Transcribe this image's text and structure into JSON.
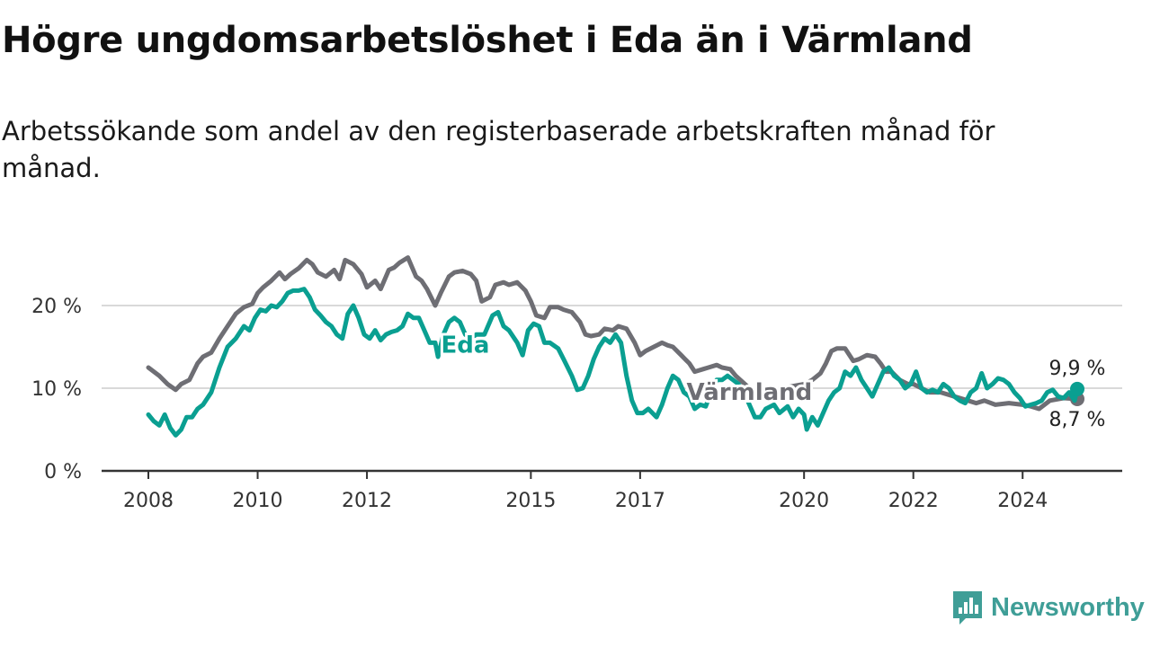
{
  "title": "Högre ungdomsarbetslöshet i Eda än i Värmland",
  "subtitle": "Arbetssökande som andel av den registerbaserade arbetskraften månad för månad.",
  "brand": {
    "name": "Newsworthy",
    "icon": "newsworthy-logo-icon",
    "color": "#3f9e97"
  },
  "chart_data": {
    "type": "line",
    "xlim": [
      2008,
      2025.5
    ],
    "ylim": [
      0,
      27
    ],
    "y_ticks": [
      {
        "value": 0,
        "label": "0 %"
      },
      {
        "value": 10,
        "label": "10 %"
      },
      {
        "value": 20,
        "label": "20 %"
      }
    ],
    "x_ticks": [
      {
        "value": 2008,
        "label": "2008"
      },
      {
        "value": 2010,
        "label": "2010"
      },
      {
        "value": 2012,
        "label": "2012"
      },
      {
        "value": 2015,
        "label": "2015"
      },
      {
        "value": 2017,
        "label": "2017"
      },
      {
        "value": 2020,
        "label": "2020"
      },
      {
        "value": 2022,
        "label": "2022"
      },
      {
        "value": 2024,
        "label": "2024"
      }
    ],
    "grid": "horizontal",
    "series": [
      {
        "name": "Värmland",
        "color": "#6e6e74",
        "end_label": "8,7 %",
        "points": [
          [
            2008.0,
            12.5
          ],
          [
            2008.2,
            11.5
          ],
          [
            2008.35,
            10.5
          ],
          [
            2008.5,
            9.8
          ],
          [
            2008.6,
            10.5
          ],
          [
            2008.75,
            11.0
          ],
          [
            2008.9,
            13.0
          ],
          [
            2009.0,
            13.8
          ],
          [
            2009.15,
            14.3
          ],
          [
            2009.3,
            16.0
          ],
          [
            2009.45,
            17.5
          ],
          [
            2009.6,
            19.0
          ],
          [
            2009.75,
            19.8
          ],
          [
            2009.9,
            20.2
          ],
          [
            2010.0,
            21.5
          ],
          [
            2010.1,
            22.2
          ],
          [
            2010.25,
            23.0
          ],
          [
            2010.4,
            24.0
          ],
          [
            2010.5,
            23.2
          ],
          [
            2010.6,
            23.8
          ],
          [
            2010.75,
            24.5
          ],
          [
            2010.9,
            25.5
          ],
          [
            2011.0,
            25.0
          ],
          [
            2011.1,
            24.0
          ],
          [
            2011.25,
            23.5
          ],
          [
            2011.4,
            24.3
          ],
          [
            2011.5,
            23.2
          ],
          [
            2011.6,
            25.5
          ],
          [
            2011.75,
            25.0
          ],
          [
            2011.9,
            23.8
          ],
          [
            2012.0,
            22.2
          ],
          [
            2012.15,
            23.0
          ],
          [
            2012.25,
            22.0
          ],
          [
            2012.4,
            24.3
          ],
          [
            2012.5,
            24.6
          ],
          [
            2012.6,
            25.2
          ],
          [
            2012.75,
            25.8
          ],
          [
            2012.9,
            23.5
          ],
          [
            2013.0,
            23.0
          ],
          [
            2013.1,
            22.0
          ],
          [
            2013.25,
            20.0
          ],
          [
            2013.35,
            21.5
          ],
          [
            2013.5,
            23.5
          ],
          [
            2013.6,
            24.0
          ],
          [
            2013.75,
            24.2
          ],
          [
            2013.9,
            23.8
          ],
          [
            2014.0,
            23.0
          ],
          [
            2014.1,
            20.5
          ],
          [
            2014.25,
            21.0
          ],
          [
            2014.35,
            22.5
          ],
          [
            2014.5,
            22.8
          ],
          [
            2014.6,
            22.5
          ],
          [
            2014.75,
            22.8
          ],
          [
            2014.9,
            21.8
          ],
          [
            2015.0,
            20.5
          ],
          [
            2015.1,
            18.8
          ],
          [
            2015.25,
            18.5
          ],
          [
            2015.35,
            19.8
          ],
          [
            2015.5,
            19.8
          ],
          [
            2015.6,
            19.5
          ],
          [
            2015.75,
            19.2
          ],
          [
            2015.9,
            18.0
          ],
          [
            2016.0,
            16.5
          ],
          [
            2016.1,
            16.3
          ],
          [
            2016.25,
            16.5
          ],
          [
            2016.35,
            17.2
          ],
          [
            2016.5,
            17.0
          ],
          [
            2016.6,
            17.5
          ],
          [
            2016.75,
            17.2
          ],
          [
            2016.9,
            15.5
          ],
          [
            2017.0,
            14.0
          ],
          [
            2017.1,
            14.5
          ],
          [
            2017.25,
            15.0
          ],
          [
            2017.4,
            15.5
          ],
          [
            2017.5,
            15.2
          ],
          [
            2017.6,
            15.0
          ],
          [
            2017.75,
            14.0
          ],
          [
            2017.9,
            13.0
          ],
          [
            2018.0,
            12.0
          ],
          [
            2018.15,
            12.3
          ],
          [
            2018.25,
            12.5
          ],
          [
            2018.4,
            12.8
          ],
          [
            2018.5,
            12.5
          ],
          [
            2018.65,
            12.3
          ],
          [
            2018.75,
            11.5
          ],
          [
            2019.0,
            10.0
          ],
          [
            2019.25,
            9.5
          ],
          [
            2019.5,
            9.8
          ],
          [
            2019.75,
            10.2
          ],
          [
            2020.0,
            10.5
          ],
          [
            2020.15,
            11.0
          ],
          [
            2020.3,
            11.8
          ],
          [
            2020.4,
            13.0
          ],
          [
            2020.5,
            14.5
          ],
          [
            2020.6,
            14.8
          ],
          [
            2020.75,
            14.8
          ],
          [
            2020.9,
            13.3
          ],
          [
            2021.0,
            13.5
          ],
          [
            2021.15,
            14.0
          ],
          [
            2021.3,
            13.8
          ],
          [
            2021.4,
            13.0
          ],
          [
            2021.5,
            12.0
          ],
          [
            2021.6,
            12.0
          ],
          [
            2021.75,
            11.0
          ],
          [
            2021.9,
            10.5
          ],
          [
            2022.0,
            10.5
          ],
          [
            2022.15,
            10.0
          ],
          [
            2022.3,
            9.5
          ],
          [
            2022.5,
            9.5
          ],
          [
            2022.75,
            9.0
          ],
          [
            2023.0,
            8.5
          ],
          [
            2023.15,
            8.2
          ],
          [
            2023.3,
            8.5
          ],
          [
            2023.5,
            8.0
          ],
          [
            2023.75,
            8.2
          ],
          [
            2024.0,
            8.0
          ],
          [
            2024.15,
            7.8
          ],
          [
            2024.3,
            7.5
          ],
          [
            2024.5,
            8.5
          ],
          [
            2024.75,
            8.8
          ],
          [
            2025.0,
            8.7
          ]
        ]
      },
      {
        "name": "Eda",
        "color": "#0a9f91",
        "end_label": "9,9 %",
        "points": [
          [
            2008.0,
            6.8
          ],
          [
            2008.1,
            6.0
          ],
          [
            2008.2,
            5.5
          ],
          [
            2008.3,
            6.8
          ],
          [
            2008.4,
            5.2
          ],
          [
            2008.5,
            4.3
          ],
          [
            2008.6,
            5.0
          ],
          [
            2008.7,
            6.5
          ],
          [
            2008.8,
            6.5
          ],
          [
            2008.9,
            7.5
          ],
          [
            2009.0,
            8.0
          ],
          [
            2009.15,
            9.5
          ],
          [
            2009.3,
            12.5
          ],
          [
            2009.45,
            15.0
          ],
          [
            2009.6,
            16.0
          ],
          [
            2009.75,
            17.5
          ],
          [
            2009.85,
            17.0
          ],
          [
            2009.95,
            18.5
          ],
          [
            2010.05,
            19.5
          ],
          [
            2010.15,
            19.3
          ],
          [
            2010.25,
            20.0
          ],
          [
            2010.35,
            19.8
          ],
          [
            2010.45,
            20.5
          ],
          [
            2010.55,
            21.5
          ],
          [
            2010.65,
            21.8
          ],
          [
            2010.75,
            21.8
          ],
          [
            2010.85,
            22.0
          ],
          [
            2010.95,
            21.0
          ],
          [
            2011.05,
            19.5
          ],
          [
            2011.15,
            18.8
          ],
          [
            2011.25,
            18.0
          ],
          [
            2011.35,
            17.5
          ],
          [
            2011.45,
            16.5
          ],
          [
            2011.55,
            16.0
          ],
          [
            2011.65,
            19.0
          ],
          [
            2011.75,
            20.0
          ],
          [
            2011.85,
            18.5
          ],
          [
            2011.95,
            16.5
          ],
          [
            2012.05,
            16.0
          ],
          [
            2012.15,
            17.0
          ],
          [
            2012.25,
            15.8
          ],
          [
            2012.35,
            16.5
          ],
          [
            2012.45,
            16.8
          ],
          [
            2012.55,
            17.0
          ],
          [
            2012.65,
            17.5
          ],
          [
            2012.75,
            19.0
          ],
          [
            2012.85,
            18.5
          ],
          [
            2012.95,
            18.5
          ],
          [
            2013.05,
            17.0
          ],
          [
            2013.15,
            15.5
          ],
          [
            2013.25,
            15.5
          ],
          [
            2013.3,
            13.8
          ],
          [
            2013.4,
            16.5
          ],
          [
            2013.5,
            18.0
          ],
          [
            2013.6,
            18.5
          ],
          [
            2013.7,
            18.0
          ],
          [
            2013.8,
            16.5
          ],
          [
            2013.9,
            16.0
          ],
          [
            2014.0,
            16.5
          ],
          [
            2014.15,
            16.5
          ],
          [
            2014.3,
            18.8
          ],
          [
            2014.4,
            19.2
          ],
          [
            2014.5,
            17.5
          ],
          [
            2014.6,
            17.0
          ],
          [
            2014.75,
            15.5
          ],
          [
            2014.85,
            14.0
          ],
          [
            2014.95,
            17.0
          ],
          [
            2015.05,
            17.8
          ],
          [
            2015.15,
            17.5
          ],
          [
            2015.25,
            15.5
          ],
          [
            2015.35,
            15.5
          ],
          [
            2015.5,
            14.8
          ],
          [
            2015.6,
            13.5
          ],
          [
            2015.75,
            11.5
          ],
          [
            2015.85,
            9.8
          ],
          [
            2015.95,
            10.0
          ],
          [
            2016.05,
            11.5
          ],
          [
            2016.15,
            13.5
          ],
          [
            2016.25,
            15.0
          ],
          [
            2016.35,
            16.0
          ],
          [
            2016.45,
            15.5
          ],
          [
            2016.55,
            16.5
          ],
          [
            2016.65,
            15.5
          ],
          [
            2016.75,
            11.5
          ],
          [
            2016.85,
            8.5
          ],
          [
            2016.95,
            7.0
          ],
          [
            2017.05,
            7.0
          ],
          [
            2017.15,
            7.5
          ],
          [
            2017.3,
            6.5
          ],
          [
            2017.4,
            8.0
          ],
          [
            2017.5,
            10.0
          ],
          [
            2017.6,
            11.5
          ],
          [
            2017.7,
            11.0
          ],
          [
            2017.8,
            9.5
          ],
          [
            2017.9,
            9.0
          ],
          [
            2018.0,
            7.5
          ],
          [
            2018.1,
            8.0
          ],
          [
            2018.2,
            7.8
          ],
          [
            2018.3,
            9.5
          ],
          [
            2018.4,
            11.0
          ],
          [
            2018.5,
            11.0
          ],
          [
            2018.6,
            11.5
          ],
          [
            2018.7,
            11.0
          ],
          [
            2018.8,
            10.5
          ],
          [
            2018.9,
            9.5
          ],
          [
            2019.0,
            8.0
          ],
          [
            2019.1,
            6.5
          ],
          [
            2019.2,
            6.5
          ],
          [
            2019.3,
            7.5
          ],
          [
            2019.45,
            8.0
          ],
          [
            2019.55,
            7.0
          ],
          [
            2019.7,
            7.8
          ],
          [
            2019.8,
            6.5
          ],
          [
            2019.9,
            7.5
          ],
          [
            2020.0,
            6.8
          ],
          [
            2020.05,
            5.0
          ],
          [
            2020.15,
            6.5
          ],
          [
            2020.25,
            5.5
          ],
          [
            2020.35,
            7.0
          ],
          [
            2020.45,
            8.5
          ],
          [
            2020.55,
            9.5
          ],
          [
            2020.65,
            10.0
          ],
          [
            2020.75,
            12.0
          ],
          [
            2020.85,
            11.5
          ],
          [
            2020.95,
            12.5
          ],
          [
            2021.05,
            11.0
          ],
          [
            2021.15,
            10.0
          ],
          [
            2021.25,
            9.0
          ],
          [
            2021.35,
            10.5
          ],
          [
            2021.45,
            12.0
          ],
          [
            2021.55,
            12.5
          ],
          [
            2021.65,
            11.5
          ],
          [
            2021.75,
            11.0
          ],
          [
            2021.85,
            10.0
          ],
          [
            2021.95,
            10.5
          ],
          [
            2022.05,
            12.0
          ],
          [
            2022.15,
            10.0
          ],
          [
            2022.25,
            9.5
          ],
          [
            2022.35,
            9.8
          ],
          [
            2022.45,
            9.5
          ],
          [
            2022.55,
            10.5
          ],
          [
            2022.65,
            10.0
          ],
          [
            2022.75,
            9.0
          ],
          [
            2022.85,
            8.5
          ],
          [
            2022.95,
            8.2
          ],
          [
            2023.05,
            9.5
          ],
          [
            2023.15,
            10.0
          ],
          [
            2023.25,
            11.8
          ],
          [
            2023.35,
            10.0
          ],
          [
            2023.45,
            10.5
          ],
          [
            2023.55,
            11.2
          ],
          [
            2023.65,
            11.0
          ],
          [
            2023.75,
            10.5
          ],
          [
            2023.85,
            9.5
          ],
          [
            2023.95,
            8.8
          ],
          [
            2024.05,
            7.8
          ],
          [
            2024.15,
            8.0
          ],
          [
            2024.25,
            8.2
          ],
          [
            2024.35,
            8.5
          ],
          [
            2024.45,
            9.5
          ],
          [
            2024.55,
            9.8
          ],
          [
            2024.65,
            9.0
          ],
          [
            2024.75,
            8.8
          ],
          [
            2024.85,
            9.5
          ],
          [
            2024.95,
            8.5
          ],
          [
            2025.0,
            9.9
          ]
        ]
      }
    ]
  }
}
